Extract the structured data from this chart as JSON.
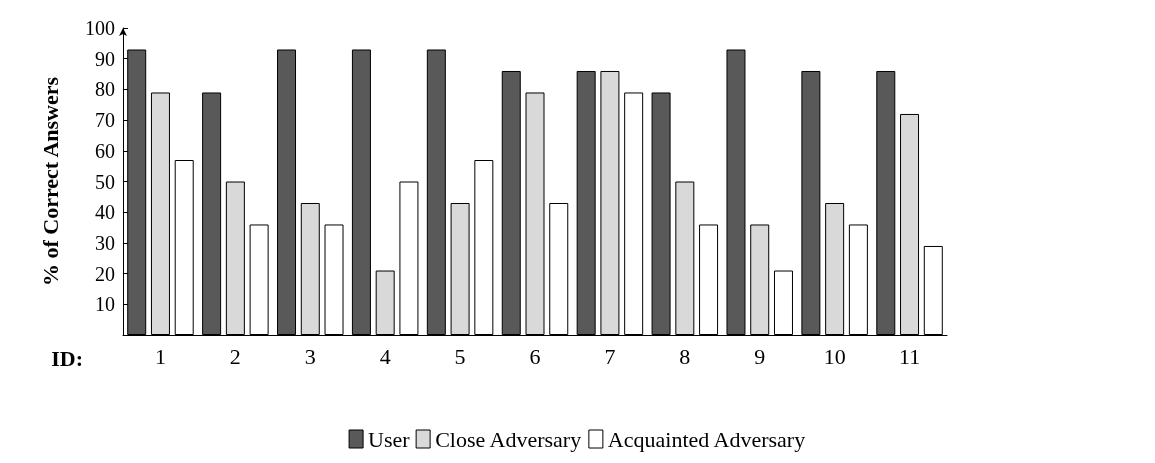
{
  "chart_data": {
    "type": "bar",
    "xlabel": "ID:",
    "ylabel": "% of Correct Answers",
    "categories": [
      "1",
      "2",
      "3",
      "4",
      "5",
      "6",
      "7",
      "8",
      "9",
      "10",
      "11"
    ],
    "series": [
      {
        "name": "User",
        "color": "#595959",
        "values": [
          93,
          79,
          93,
          93,
          93,
          86,
          86,
          79,
          93,
          86,
          86
        ]
      },
      {
        "name": "Close Adversary",
        "color": "#d9d9d9",
        "values": [
          79,
          50,
          43,
          21,
          43,
          79,
          86,
          50,
          36,
          43,
          72
        ]
      },
      {
        "name": "Acquainted Adversary",
        "color": "#ffffff",
        "values": [
          57,
          36,
          36,
          50,
          57,
          43,
          79,
          36,
          21,
          36,
          29
        ]
      }
    ],
    "ylim": [
      0,
      100
    ],
    "yticks": [
      10,
      20,
      30,
      40,
      50,
      60,
      70,
      80,
      90,
      100
    ],
    "grid": false,
    "legend": "bottom"
  }
}
